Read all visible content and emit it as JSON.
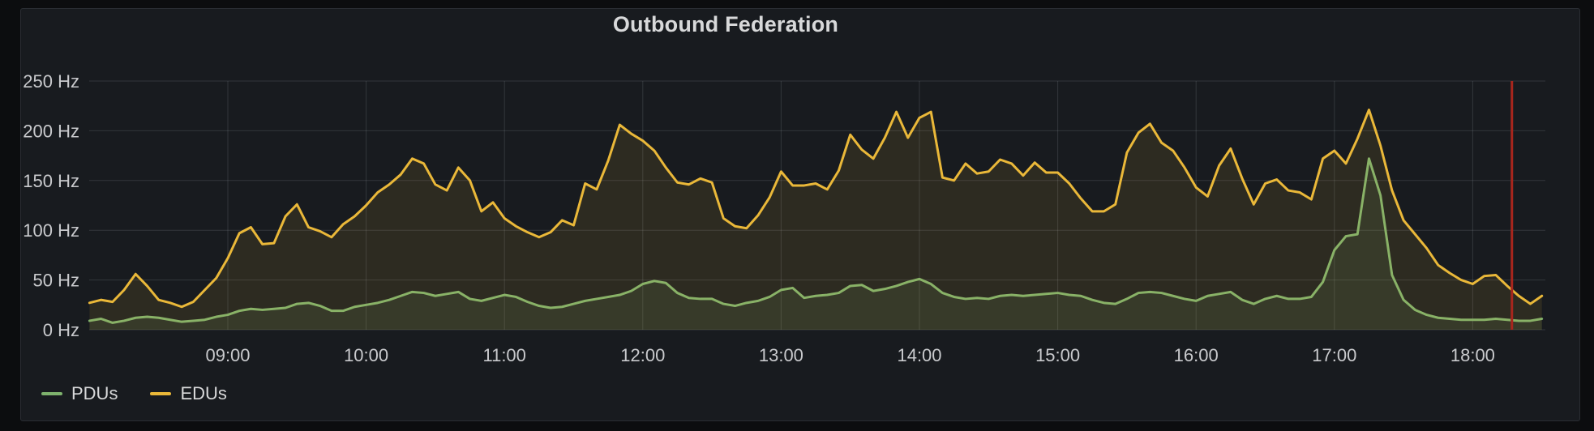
{
  "panel": {
    "title": "Outbound Federation"
  },
  "colors": {
    "page_bg": "#0c0d0f",
    "panel_bg": "#181b1f",
    "panel_border": "#2a2d33",
    "grid": "rgba(204,212,224,0.15)",
    "tick_text": "#c9cacd",
    "title_text": "#d8d9da",
    "pdu_green": "#7eb26d",
    "edu_yellow": "#eab839",
    "annotation_red": "#a8261d"
  },
  "chart_data": {
    "type": "line",
    "title": "Outbound Federation",
    "x_start": "08:00",
    "x_end": "18:30",
    "step_minutes": 5,
    "ylim": [
      0,
      250
    ],
    "y_unit": "Hz",
    "y_tick_values": [
      0,
      50,
      100,
      150,
      200,
      250
    ],
    "y_tick_labels": [
      "0 Hz",
      "50 Hz",
      "100 Hz",
      "150 Hz",
      "200 Hz",
      "250 Hz"
    ],
    "x_tick_labels": [
      "09:00",
      "10:00",
      "11:00",
      "12:00",
      "13:00",
      "14:00",
      "15:00",
      "16:00",
      "17:00",
      "18:00"
    ],
    "grid": true,
    "legend_position": "bottom-left",
    "annotation": {
      "type": "vertical-line",
      "minutes_after_start": 617,
      "color": "#a8261d"
    },
    "series": [
      {
        "name": "PDUs",
        "color": "#7eb26d",
        "fill_opacity": 0.11,
        "values": [
          9,
          11,
          7,
          9,
          12,
          13,
          12,
          10,
          8,
          9,
          10,
          13,
          15,
          19,
          21,
          20,
          21,
          22,
          26,
          27,
          24,
          19,
          19,
          23,
          25,
          27,
          30,
          34,
          38,
          37,
          34,
          36,
          38,
          31,
          29,
          32,
          35,
          33,
          28,
          24,
          22,
          23,
          26,
          29,
          31,
          33,
          35,
          39,
          46,
          49,
          47,
          37,
          32,
          31,
          31,
          26,
          24,
          27,
          29,
          33,
          40,
          42,
          32,
          34,
          35,
          37,
          44,
          45,
          39,
          41,
          44,
          48,
          51,
          46,
          37,
          33,
          31,
          32,
          31,
          34,
          35,
          34,
          35,
          36,
          37,
          35,
          34,
          30,
          27,
          26,
          31,
          37,
          38,
          37,
          34,
          31,
          29,
          34,
          36,
          38,
          30,
          26,
          31,
          34,
          31,
          31,
          33,
          48,
          80,
          94,
          96,
          172,
          135,
          55,
          30,
          20,
          15,
          12,
          11,
          10,
          10,
          10,
          11,
          10,
          9,
          9,
          11
        ]
      },
      {
        "name": "EDUs",
        "color": "#eab839",
        "fill_opacity": 0.1,
        "values": [
          27,
          30,
          28,
          40,
          56,
          44,
          30,
          27,
          23,
          28,
          40,
          52,
          72,
          97,
          103,
          86,
          87,
          114,
          126,
          103,
          99,
          93,
          106,
          114,
          125,
          138,
          146,
          156,
          172,
          167,
          146,
          140,
          163,
          150,
          119,
          128,
          112,
          104,
          98,
          93,
          98,
          110,
          105,
          147,
          141,
          170,
          206,
          197,
          190,
          180,
          163,
          148,
          146,
          152,
          148,
          112,
          104,
          102,
          115,
          133,
          159,
          145,
          145,
          147,
          141,
          160,
          196,
          181,
          172,
          193,
          219,
          193,
          213,
          219,
          153,
          150,
          167,
          157,
          159,
          171,
          167,
          155,
          168,
          158,
          158,
          147,
          132,
          119,
          119,
          126,
          178,
          198,
          207,
          188,
          180,
          163,
          143,
          134,
          165,
          182,
          152,
          126,
          147,
          151,
          140,
          138,
          131,
          172,
          180,
          167,
          192,
          221,
          185,
          140,
          110,
          96,
          82,
          65,
          57,
          50,
          46,
          54,
          55,
          44,
          34,
          26,
          34
        ]
      }
    ]
  }
}
